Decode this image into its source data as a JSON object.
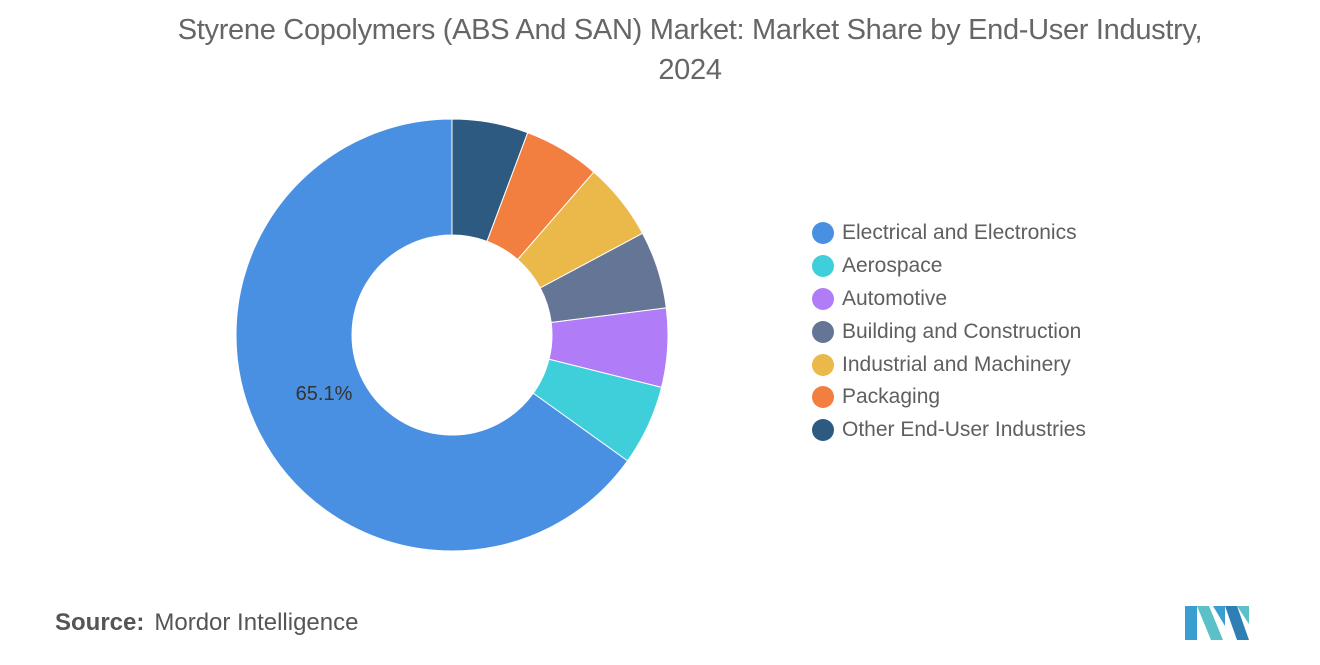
{
  "title": "Styrene Copolymers (ABS And SAN) Market: Market Share by End-User Industry, 2024",
  "source": {
    "label": "Source:",
    "value": "Mordor Intelligence"
  },
  "logo_icon": "mordor-intelligence-logo",
  "chart_data": {
    "type": "pie",
    "variant": "donut",
    "title": "Styrene Copolymers (ABS And SAN) Market: Market Share by End-User Industry, 2024",
    "legend_position": "right",
    "categories": [
      "Electrical and Electronics",
      "Aerospace",
      "Automotive",
      "Building and Construction",
      "Industrial and Machinery",
      "Packaging",
      "Other End-User Industries"
    ],
    "values": [
      65.1,
      6.0,
      5.9,
      5.8,
      5.8,
      5.7,
      5.7
    ],
    "colors": [
      "#4a90e2",
      "#3fcfdb",
      "#b07cf7",
      "#657595",
      "#ebb94a",
      "#f27f40",
      "#2d5a80"
    ],
    "data_labels": [
      "65.1%",
      "",
      "",
      "",
      "",
      "",
      ""
    ],
    "unit": "%"
  }
}
